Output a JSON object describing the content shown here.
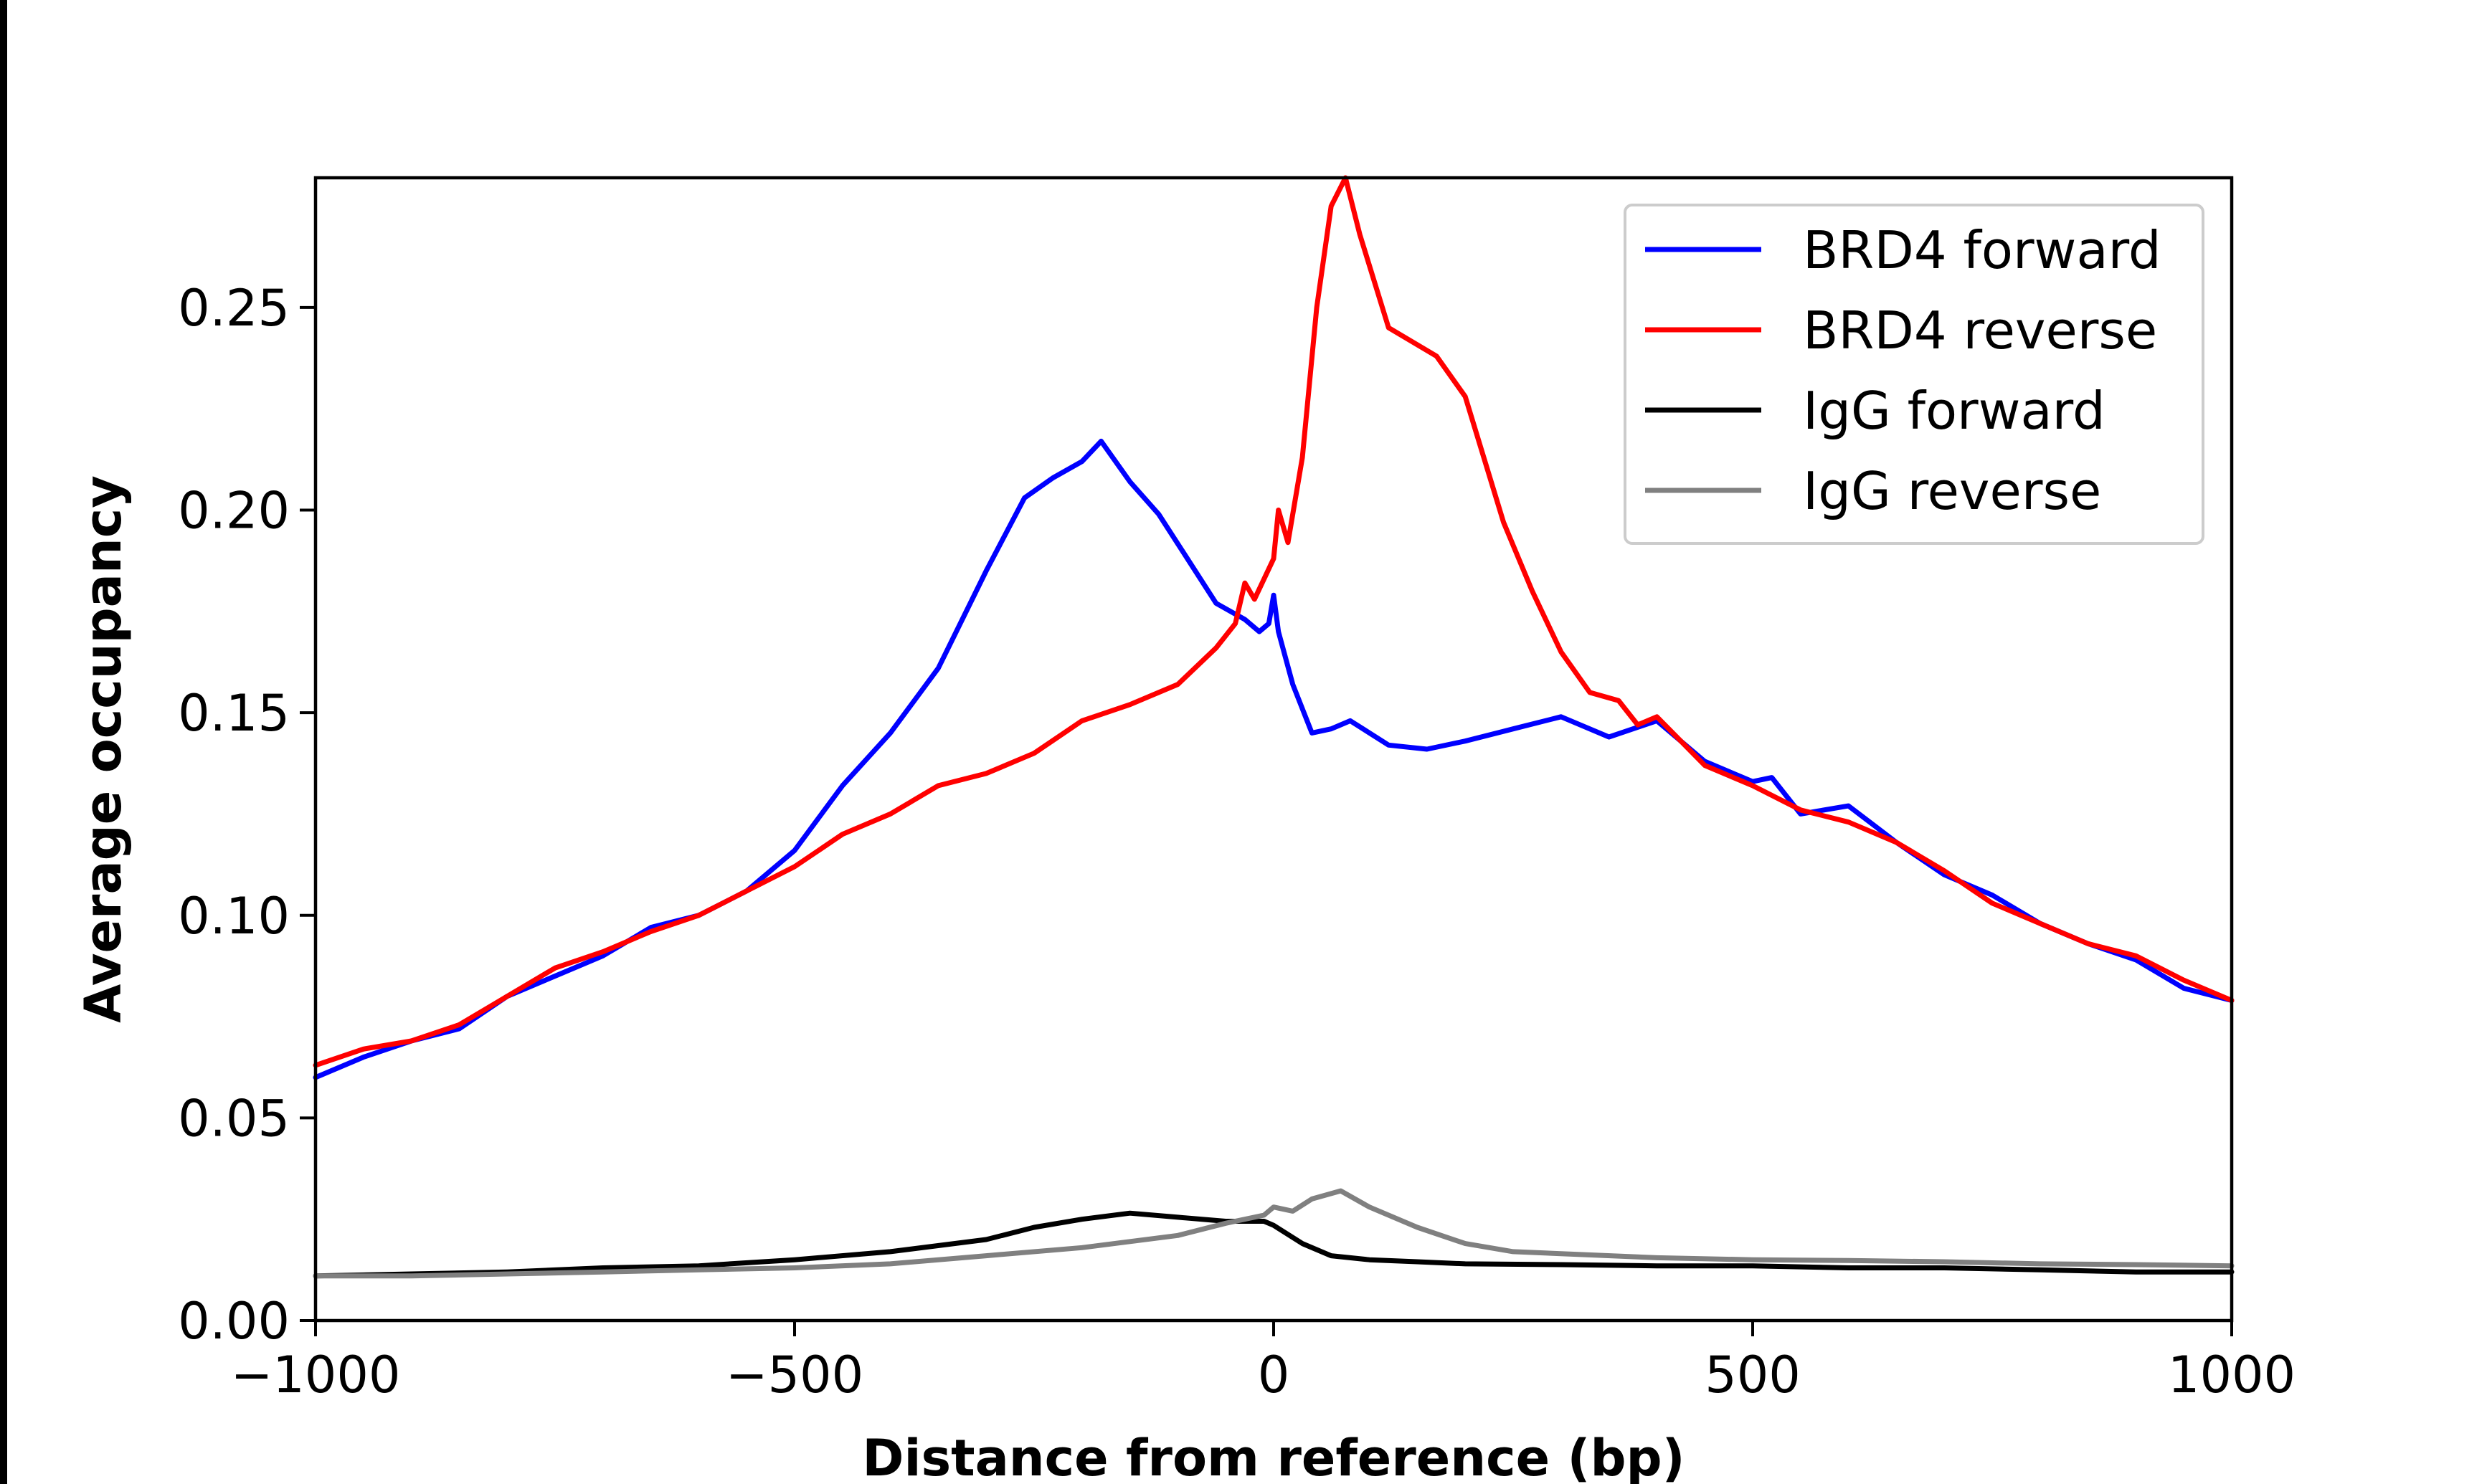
{
  "chart_data": {
    "type": "line",
    "title": "",
    "xlabel": "Distance from reference (bp)",
    "ylabel": "Average occupancy",
    "xlim": [
      -1000,
      1000
    ],
    "ylim": [
      0,
      0.282
    ],
    "xticks": [
      -1000,
      -500,
      0,
      500,
      1000
    ],
    "xtick_labels": [
      "−1000",
      "−500",
      "0",
      "500",
      "1000"
    ],
    "yticks": [
      0,
      0.05,
      0.1,
      0.15,
      0.2,
      0.25
    ],
    "ytick_labels": [
      "0.00",
      "0.05",
      "0.10",
      "0.15",
      "0.20",
      "0.25"
    ],
    "grid": false,
    "legend": "top-right",
    "series": [
      {
        "name": "BRD4 forward",
        "color": "#0000ff",
        "points": [
          [
            -1000,
            0.06
          ],
          [
            -950,
            0.065
          ],
          [
            -900,
            0.069
          ],
          [
            -850,
            0.072
          ],
          [
            -800,
            0.08
          ],
          [
            -750,
            0.085
          ],
          [
            -700,
            0.09
          ],
          [
            -650,
            0.097
          ],
          [
            -600,
            0.1
          ],
          [
            -550,
            0.106
          ],
          [
            -500,
            0.116
          ],
          [
            -450,
            0.132
          ],
          [
            -400,
            0.145
          ],
          [
            -350,
            0.161
          ],
          [
            -300,
            0.185
          ],
          [
            -260,
            0.203
          ],
          [
            -230,
            0.208
          ],
          [
            -200,
            0.212
          ],
          [
            -180,
            0.217
          ],
          [
            -150,
            0.207
          ],
          [
            -120,
            0.199
          ],
          [
            -90,
            0.188
          ],
          [
            -60,
            0.177
          ],
          [
            -30,
            0.173
          ],
          [
            -15,
            0.17
          ],
          [
            -5,
            0.172
          ],
          [
            0,
            0.179
          ],
          [
            5,
            0.17
          ],
          [
            20,
            0.157
          ],
          [
            40,
            0.145
          ],
          [
            60,
            0.146
          ],
          [
            80,
            0.148
          ],
          [
            120,
            0.142
          ],
          [
            160,
            0.141
          ],
          [
            200,
            0.143
          ],
          [
            250,
            0.146
          ],
          [
            300,
            0.149
          ],
          [
            350,
            0.144
          ],
          [
            400,
            0.148
          ],
          [
            450,
            0.138
          ],
          [
            500,
            0.133
          ],
          [
            520,
            0.134
          ],
          [
            550,
            0.125
          ],
          [
            600,
            0.127
          ],
          [
            650,
            0.118
          ],
          [
            700,
            0.11
          ],
          [
            750,
            0.105
          ],
          [
            800,
            0.098
          ],
          [
            850,
            0.093
          ],
          [
            900,
            0.089
          ],
          [
            950,
            0.082
          ],
          [
            1000,
            0.079
          ]
        ]
      },
      {
        "name": "BRD4 reverse",
        "color": "#ff0000",
        "points": [
          [
            -1000,
            0.063
          ],
          [
            -950,
            0.067
          ],
          [
            -900,
            0.069
          ],
          [
            -850,
            0.073
          ],
          [
            -800,
            0.08
          ],
          [
            -750,
            0.087
          ],
          [
            -700,
            0.091
          ],
          [
            -650,
            0.096
          ],
          [
            -600,
            0.1
          ],
          [
            -550,
            0.106
          ],
          [
            -500,
            0.112
          ],
          [
            -450,
            0.12
          ],
          [
            -400,
            0.125
          ],
          [
            -350,
            0.132
          ],
          [
            -300,
            0.135
          ],
          [
            -250,
            0.14
          ],
          [
            -200,
            0.148
          ],
          [
            -150,
            0.152
          ],
          [
            -100,
            0.157
          ],
          [
            -60,
            0.166
          ],
          [
            -40,
            0.172
          ],
          [
            -30,
            0.182
          ],
          [
            -20,
            0.178
          ],
          [
            0,
            0.188
          ],
          [
            5,
            0.2
          ],
          [
            15,
            0.192
          ],
          [
            30,
            0.213
          ],
          [
            45,
            0.25
          ],
          [
            60,
            0.275
          ],
          [
            75,
            0.282
          ],
          [
            90,
            0.268
          ],
          [
            120,
            0.245
          ],
          [
            170,
            0.238
          ],
          [
            200,
            0.228
          ],
          [
            240,
            0.197
          ],
          [
            270,
            0.18
          ],
          [
            300,
            0.165
          ],
          [
            330,
            0.155
          ],
          [
            360,
            0.153
          ],
          [
            380,
            0.147
          ],
          [
            400,
            0.149
          ],
          [
            450,
            0.137
          ],
          [
            500,
            0.132
          ],
          [
            550,
            0.126
          ],
          [
            600,
            0.123
          ],
          [
            650,
            0.118
          ],
          [
            700,
            0.111
          ],
          [
            750,
            0.103
          ],
          [
            800,
            0.098
          ],
          [
            850,
            0.093
          ],
          [
            900,
            0.09
          ],
          [
            950,
            0.084
          ],
          [
            1000,
            0.079
          ]
        ]
      },
      {
        "name": "IgG forward",
        "color": "#000000",
        "points": [
          [
            -1000,
            0.011
          ],
          [
            -900,
            0.0115
          ],
          [
            -800,
            0.012
          ],
          [
            -700,
            0.013
          ],
          [
            -600,
            0.0135
          ],
          [
            -500,
            0.015
          ],
          [
            -400,
            0.017
          ],
          [
            -300,
            0.02
          ],
          [
            -250,
            0.023
          ],
          [
            -200,
            0.025
          ],
          [
            -150,
            0.0265
          ],
          [
            -100,
            0.0255
          ],
          [
            -50,
            0.0245
          ],
          [
            -10,
            0.0245
          ],
          [
            0,
            0.0235
          ],
          [
            30,
            0.019
          ],
          [
            60,
            0.016
          ],
          [
            100,
            0.015
          ],
          [
            150,
            0.0145
          ],
          [
            200,
            0.014
          ],
          [
            300,
            0.0138
          ],
          [
            400,
            0.0135
          ],
          [
            500,
            0.0135
          ],
          [
            600,
            0.013
          ],
          [
            700,
            0.013
          ],
          [
            800,
            0.0125
          ],
          [
            900,
            0.012
          ],
          [
            1000,
            0.012
          ]
        ]
      },
      {
        "name": "IgG reverse",
        "color": "#808080",
        "points": [
          [
            -1000,
            0.011
          ],
          [
            -900,
            0.011
          ],
          [
            -800,
            0.0115
          ],
          [
            -700,
            0.012
          ],
          [
            -600,
            0.0125
          ],
          [
            -500,
            0.013
          ],
          [
            -400,
            0.014
          ],
          [
            -300,
            0.016
          ],
          [
            -200,
            0.018
          ],
          [
            -100,
            0.021
          ],
          [
            -50,
            0.024
          ],
          [
            -10,
            0.026
          ],
          [
            0,
            0.028
          ],
          [
            20,
            0.027
          ],
          [
            40,
            0.03
          ],
          [
            70,
            0.032
          ],
          [
            100,
            0.028
          ],
          [
            150,
            0.023
          ],
          [
            200,
            0.019
          ],
          [
            250,
            0.017
          ],
          [
            300,
            0.0165
          ],
          [
            400,
            0.0155
          ],
          [
            500,
            0.015
          ],
          [
            600,
            0.0148
          ],
          [
            700,
            0.0145
          ],
          [
            800,
            0.014
          ],
          [
            900,
            0.0138
          ],
          [
            1000,
            0.0135
          ]
        ]
      }
    ]
  }
}
